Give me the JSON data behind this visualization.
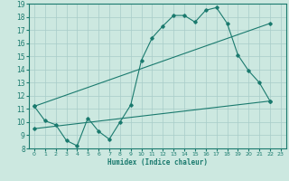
{
  "xlabel": "Humidex (Indice chaleur)",
  "bg_color": "#cce8e0",
  "line_color": "#1a7a6e",
  "grid_color": "#a8ccc8",
  "spine_color": "#1a7a6e",
  "xlim": [
    -0.5,
    23.5
  ],
  "ylim": [
    8,
    19
  ],
  "xticks": [
    0,
    1,
    2,
    3,
    4,
    5,
    6,
    7,
    8,
    9,
    10,
    11,
    12,
    13,
    14,
    15,
    16,
    17,
    18,
    19,
    20,
    21,
    22,
    23
  ],
  "yticks": [
    8,
    9,
    10,
    11,
    12,
    13,
    14,
    15,
    16,
    17,
    18,
    19
  ],
  "series": [
    {
      "x": [
        0,
        1,
        2,
        3,
        4,
        5,
        6,
        7,
        8,
        9,
        10,
        11,
        12,
        13,
        14,
        15,
        16,
        17,
        18,
        19,
        20,
        21,
        22
      ],
      "y": [
        11.2,
        10.1,
        9.8,
        8.6,
        8.2,
        10.3,
        9.3,
        8.7,
        10.0,
        11.3,
        14.7,
        16.4,
        17.3,
        18.1,
        18.1,
        17.6,
        18.5,
        18.7,
        17.5,
        15.1,
        13.9,
        13.0,
        11.6
      ],
      "has_markers": true
    },
    {
      "x": [
        0,
        22
      ],
      "y": [
        9.5,
        11.6
      ],
      "has_markers": true
    },
    {
      "x": [
        0,
        22
      ],
      "y": [
        11.2,
        17.5
      ],
      "has_markers": true
    }
  ]
}
